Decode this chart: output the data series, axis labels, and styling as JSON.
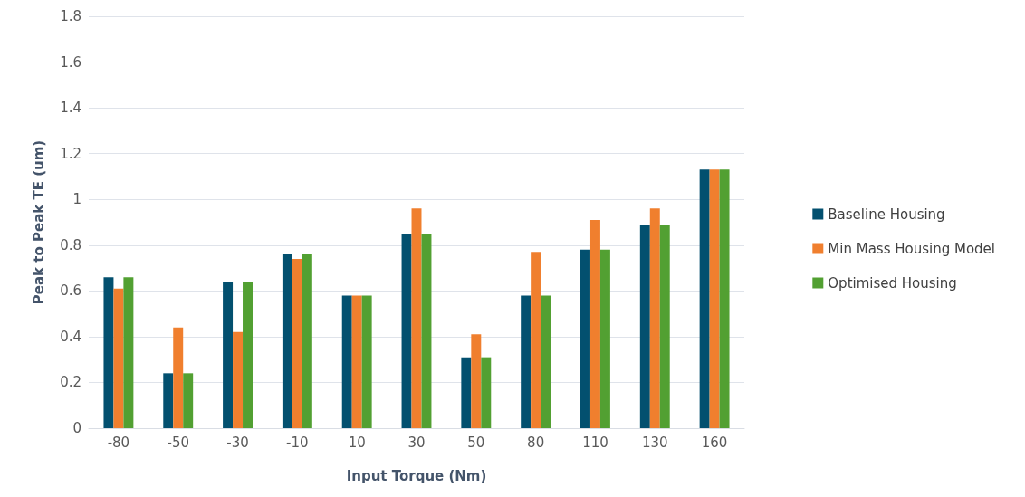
{
  "chart_data": {
    "type": "bar",
    "xlabel": "Input Torque (Nm)",
    "ylabel": "Peak to Peak TE (um)",
    "categories": [
      "-80",
      "-50",
      "-30",
      "-10",
      "10",
      "30",
      "50",
      "80",
      "110",
      "130",
      "160"
    ],
    "series": [
      {
        "name": "Baseline Housing",
        "color": "#03506f",
        "values": [
          0.66,
          0.24,
          0.64,
          0.76,
          0.58,
          0.85,
          0.31,
          0.58,
          0.78,
          0.89,
          1.13
        ]
      },
      {
        "name": "Min Mass Housing Model",
        "color": "#f07f2e",
        "values": [
          0.61,
          0.44,
          0.42,
          0.74,
          0.58,
          0.96,
          0.41,
          0.77,
          0.91,
          0.96,
          1.13
        ]
      },
      {
        "name": "Optimised Housing",
        "color": "#52a032",
        "values": [
          0.66,
          0.24,
          0.64,
          0.76,
          0.58,
          0.85,
          0.31,
          0.58,
          0.78,
          0.89,
          1.13
        ]
      }
    ],
    "ylim": [
      0,
      1.8
    ],
    "yticks": [
      0,
      0.2,
      0.4,
      0.6,
      0.8,
      1,
      1.2,
      1.4,
      1.6,
      1.8
    ],
    "grid": "y",
    "legend": "right"
  }
}
